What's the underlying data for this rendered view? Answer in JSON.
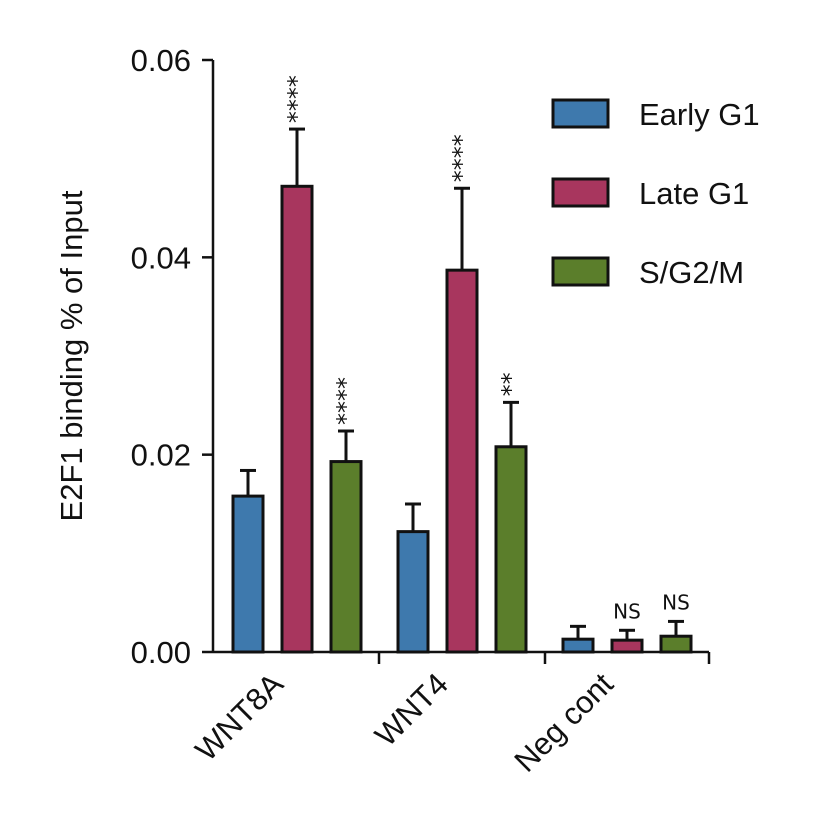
{
  "chart_data": {
    "type": "bar",
    "title": "",
    "xlabel": "",
    "ylabel": "E2F1 binding % of Input",
    "ylim": [
      0,
      0.06
    ],
    "yticks": [
      "0.00",
      "0.02",
      "0.04",
      "0.06"
    ],
    "ytick_values": [
      0,
      0.02,
      0.04,
      0.06
    ],
    "categories": [
      "WNT8A",
      "WNT4",
      "Neg cont"
    ],
    "legend_position": "top-right",
    "grid": false,
    "series": [
      {
        "name": "Early G1",
        "color": "#3e79ad",
        "values": [
          0.0158,
          0.0122,
          0.0013
        ],
        "errors": [
          0.0026,
          0.0028,
          0.0013
        ],
        "significance": [
          "",
          "",
          ""
        ]
      },
      {
        "name": "Late G1",
        "color": "#a8365e",
        "values": [
          0.0472,
          0.0387,
          0.0012
        ],
        "errors": [
          0.0058,
          0.0083,
          0.001
        ],
        "significance": [
          "****",
          "****",
          "NS"
        ]
      },
      {
        "name": "S/G2/M",
        "color": "#5b7e2b",
        "values": [
          0.0193,
          0.0208,
          0.0016
        ],
        "errors": [
          0.0031,
          0.0045,
          0.0015
        ],
        "significance": [
          "****",
          "**",
          "NS"
        ]
      }
    ]
  }
}
